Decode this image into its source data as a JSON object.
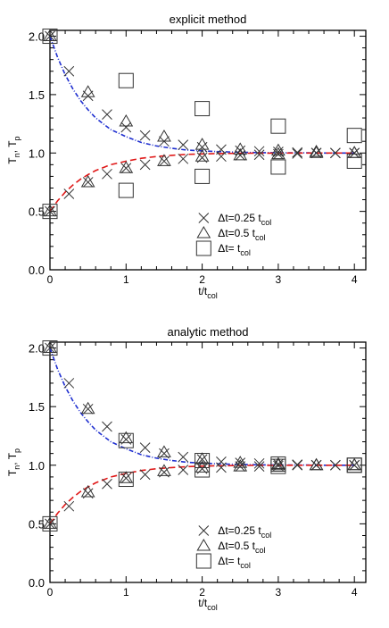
{
  "chart_data": [
    {
      "type": "scatter",
      "title": "explicit method",
      "xlabel": {
        "base": "t/t",
        "sub": "col"
      },
      "ylabel": {
        "parts": [
          {
            "t": "T"
          },
          {
            "t": "n",
            "sub": true
          },
          {
            "t": ", T"
          },
          {
            "t": "p",
            "sub": true
          }
        ]
      },
      "xlim": [
        0,
        4.15
      ],
      "ylim": [
        0,
        2.05
      ],
      "xticks": [
        "0",
        "1",
        "2",
        "3",
        "4"
      ],
      "yticks": [
        "0.0",
        "0.5",
        "1.0",
        "1.5",
        "2.0"
      ],
      "curves": [
        {
          "name": "",
          "color": "#1f2fd0",
          "dash": "dashdot",
          "x": [
            0,
            0.1,
            0.2,
            0.3,
            0.4,
            0.5,
            0.6,
            0.7,
            0.8,
            0.9,
            1,
            1.2,
            1.4,
            1.6,
            1.8,
            2,
            2.2,
            2.4,
            2.6,
            2.8,
            3,
            3.2,
            3.4,
            3.6,
            3.8,
            4
          ],
          "y": [
            2.0,
            1.82,
            1.67,
            1.55,
            1.45,
            1.37,
            1.3,
            1.25,
            1.2,
            1.17,
            1.14,
            1.09,
            1.06,
            1.04,
            1.025,
            1.018,
            1.012,
            1.008,
            1.005,
            1.003,
            1.002,
            1.001,
            1.001,
            1.0,
            1.0,
            1.0
          ]
        },
        {
          "name": "",
          "color": "#e01818",
          "dash": "dash",
          "x": [
            0,
            0.1,
            0.2,
            0.3,
            0.4,
            0.5,
            0.6,
            0.7,
            0.8,
            0.9,
            1,
            1.2,
            1.4,
            1.6,
            1.8,
            2,
            2.2,
            2.4,
            2.6,
            2.8,
            3,
            3.2,
            3.4,
            3.6,
            3.8,
            4
          ],
          "y": [
            0.5,
            0.59,
            0.665,
            0.725,
            0.775,
            0.815,
            0.85,
            0.875,
            0.9,
            0.915,
            0.93,
            0.955,
            0.97,
            0.98,
            0.988,
            0.992,
            0.995,
            0.997,
            0.998,
            0.999,
            0.999,
            1.0,
            1.0,
            1.0,
            1.0,
            1.0
          ]
        }
      ],
      "series": [
        {
          "name": "dt0.25",
          "marker": "x",
          "x": [
            0,
            0.25,
            0.5,
            0.75,
            1,
            1.25,
            1.5,
            1.75,
            2,
            2.25,
            2.5,
            2.75,
            3,
            3.25,
            3.5,
            3.75,
            4,
            0,
            0.25,
            0.5,
            0.75,
            1,
            1.25,
            1.5,
            1.75,
            2,
            2.25,
            2.5,
            2.75,
            3,
            3.25,
            3.5,
            3.75,
            4
          ],
          "y": [
            2.0,
            1.7,
            1.49,
            1.33,
            1.22,
            1.15,
            1.1,
            1.07,
            1.05,
            1.03,
            1.02,
            1.015,
            1.01,
            1.005,
            1.0,
            1.0,
            1.0,
            0.5,
            0.65,
            0.75,
            0.82,
            0.87,
            0.9,
            0.93,
            0.95,
            0.96,
            0.97,
            0.98,
            0.985,
            0.99,
            0.995,
            1.0,
            1.0,
            1.0
          ]
        },
        {
          "name": "dt0.5",
          "marker": "triangle",
          "x": [
            0,
            0.5,
            1,
            1.5,
            2,
            2.5,
            3,
            3.5,
            4,
            0,
            0.5,
            1,
            1.5,
            2,
            2.5,
            3,
            3.5,
            4
          ],
          "y": [
            2.0,
            1.52,
            1.27,
            1.14,
            1.07,
            1.03,
            1.02,
            1.01,
            1.0,
            0.5,
            0.75,
            0.87,
            0.93,
            0.97,
            0.98,
            0.99,
            1.0,
            1.0
          ]
        },
        {
          "name": "dt1",
          "marker": "square",
          "x": [
            0,
            1,
            2,
            3,
            4,
            0,
            1,
            2,
            3,
            4
          ],
          "y": [
            2.0,
            1.62,
            1.38,
            1.23,
            1.15,
            0.5,
            0.68,
            0.8,
            0.88,
            0.93
          ]
        }
      ],
      "legend": {
        "position": "bottom-right",
        "entries": [
          {
            "marker": "x",
            "text": "Δt=0.25 t",
            "sub": "col"
          },
          {
            "marker": "triangle",
            "text": "Δt=0.5 t",
            "sub": "col"
          },
          {
            "marker": "square",
            "text": "Δt= t",
            "sub": "col"
          }
        ]
      }
    },
    {
      "type": "scatter",
      "title": "analytic method",
      "xlabel": {
        "base": "t/t",
        "sub": "col"
      },
      "ylabel": {
        "parts": [
          {
            "t": "T"
          },
          {
            "t": "n",
            "sub": true
          },
          {
            "t": ", T"
          },
          {
            "t": "p",
            "sub": true
          }
        ]
      },
      "xlim": [
        0,
        4.15
      ],
      "ylim": [
        0,
        2.05
      ],
      "xticks": [
        "0",
        "1",
        "2",
        "3",
        "4"
      ],
      "yticks": [
        "0.0",
        "0.5",
        "1.0",
        "1.5",
        "2.0"
      ],
      "curves": [
        {
          "name": "",
          "color": "#1f2fd0",
          "dash": "dashdot",
          "x": [
            0,
            0.1,
            0.2,
            0.3,
            0.4,
            0.5,
            0.6,
            0.7,
            0.8,
            0.9,
            1,
            1.2,
            1.4,
            1.6,
            1.8,
            2,
            2.2,
            2.4,
            2.6,
            2.8,
            3,
            3.2,
            3.4,
            3.6,
            3.8,
            4
          ],
          "y": [
            2.0,
            1.82,
            1.67,
            1.55,
            1.45,
            1.37,
            1.3,
            1.25,
            1.2,
            1.17,
            1.14,
            1.09,
            1.06,
            1.04,
            1.025,
            1.018,
            1.012,
            1.008,
            1.005,
            1.003,
            1.002,
            1.001,
            1.001,
            1.0,
            1.0,
            1.0
          ]
        },
        {
          "name": "",
          "color": "#e01818",
          "dash": "dash",
          "x": [
            0,
            0.1,
            0.2,
            0.3,
            0.4,
            0.5,
            0.6,
            0.7,
            0.8,
            0.9,
            1,
            1.2,
            1.4,
            1.6,
            1.8,
            2,
            2.2,
            2.4,
            2.6,
            2.8,
            3,
            3.2,
            3.4,
            3.6,
            3.8,
            4
          ],
          "y": [
            0.5,
            0.59,
            0.665,
            0.725,
            0.775,
            0.815,
            0.85,
            0.875,
            0.9,
            0.915,
            0.93,
            0.955,
            0.97,
            0.98,
            0.988,
            0.992,
            0.995,
            0.997,
            0.998,
            0.999,
            0.999,
            1.0,
            1.0,
            1.0,
            1.0,
            1.0
          ]
        }
      ],
      "series": [
        {
          "name": "dt0.25",
          "marker": "x",
          "x": [
            0,
            0.25,
            0.5,
            0.75,
            1,
            1.25,
            1.5,
            1.75,
            2,
            2.25,
            2.5,
            2.75,
            3,
            3.25,
            3.5,
            3.75,
            4,
            0,
            0.25,
            0.5,
            0.75,
            1,
            1.25,
            1.5,
            1.75,
            2,
            2.25,
            2.5,
            2.75,
            3,
            3.25,
            3.5,
            3.75,
            4
          ],
          "y": [
            2.0,
            1.7,
            1.48,
            1.33,
            1.22,
            1.15,
            1.1,
            1.07,
            1.05,
            1.03,
            1.02,
            1.015,
            1.01,
            1.005,
            1.0,
            1.0,
            1.0,
            0.5,
            0.65,
            0.76,
            0.84,
            0.89,
            0.92,
            0.94,
            0.96,
            0.97,
            0.98,
            0.99,
            0.99,
            0.995,
            1.0,
            1.0,
            1.0,
            1.0
          ]
        },
        {
          "name": "dt0.5",
          "marker": "triangle",
          "x": [
            0,
            0.5,
            1,
            1.5,
            2,
            2.5,
            3,
            3.5,
            4,
            0,
            0.5,
            1,
            1.5,
            2,
            2.5,
            3,
            3.5,
            4
          ],
          "y": [
            2.0,
            1.48,
            1.23,
            1.11,
            1.05,
            1.02,
            1.01,
            1.0,
            1.0,
            0.5,
            0.77,
            0.89,
            0.95,
            0.98,
            0.99,
            1.0,
            1.0,
            1.0
          ]
        },
        {
          "name": "dt1",
          "marker": "square",
          "x": [
            0,
            1,
            2,
            3,
            4,
            0,
            1,
            2,
            3,
            4
          ],
          "y": [
            2.0,
            1.21,
            1.04,
            1.01,
            1.0,
            0.5,
            0.88,
            0.96,
            0.99,
            1.0
          ]
        }
      ],
      "legend": {
        "position": "bottom-right",
        "entries": [
          {
            "marker": "x",
            "text": "Δt=0.25 t",
            "sub": "col"
          },
          {
            "marker": "triangle",
            "text": "Δt=0.5 t",
            "sub": "col"
          },
          {
            "marker": "square",
            "text": "Δt= t",
            "sub": "col"
          }
        ]
      }
    }
  ]
}
